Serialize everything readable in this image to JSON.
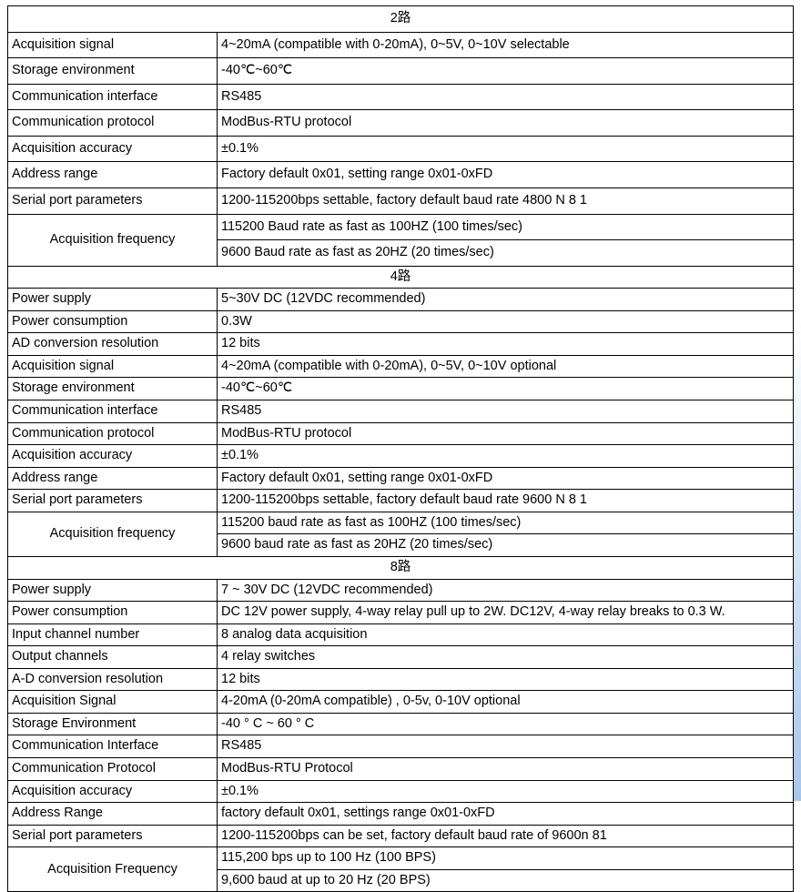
{
  "sections": [
    {
      "header": "2路",
      "tall": true,
      "rows": [
        {
          "label": "Acquisition signal",
          "value": "4~20mA (compatible with 0-20mA), 0~5V, 0~10V selectable"
        },
        {
          "label": "Storage environment",
          "value": "-40℃~60℃"
        },
        {
          "label": "Communication interface",
          "value": "RS485"
        },
        {
          "label": "Communication protocol",
          "value": "ModBus-RTU protocol"
        },
        {
          "label": "Acquisition accuracy",
          "value": "±0.1%"
        },
        {
          "label": "Address range",
          "value": "Factory default 0x01, setting range 0x01-0xFD"
        },
        {
          "label": "Serial port parameters",
          "value": "1200-115200bps settable, factory default baud rate 4800 N 8 1"
        },
        {
          "label": "Acquisition frequency",
          "merged": true,
          "values": [
            "115200 Baud rate as fast as 100HZ (100 times/sec)",
            "9600 Baud rate as fast as 20HZ (20 times/sec)"
          ]
        }
      ]
    },
    {
      "header": "4路",
      "tall": false,
      "rows": [
        {
          "label": "Power supply",
          "value": "5~30V DC (12VDC recommended)"
        },
        {
          "label": "Power consumption",
          "value": "0.3W"
        },
        {
          "label": "AD conversion resolution",
          "value": "12 bits"
        },
        {
          "label": "Acquisition signal",
          "value": "4~20mA (compatible with 0-20mA), 0~5V, 0~10V optional"
        },
        {
          "label": "Storage environment",
          "value": "-40℃~60℃"
        },
        {
          "label": "Communication interface",
          "value": "RS485"
        },
        {
          "label": "Communication protocol",
          "value": "ModBus-RTU protocol"
        },
        {
          "label": "Acquisition accuracy",
          "value": "±0.1%"
        },
        {
          "label": "Address range",
          "value": "Factory default 0x01, setting range 0x01-0xFD"
        },
        {
          "label": "Serial port parameters",
          "value": "1200-115200bps settable, factory default baud rate 9600 N 8 1"
        },
        {
          "label": "Acquisition frequency",
          "merged": true,
          "values": [
            "115200 baud rate as fast as 100HZ (100 times/sec)",
            "9600 baud rate as fast as 20HZ (20 times/sec)"
          ]
        }
      ]
    },
    {
      "header": "8路",
      "tall": false,
      "rows": [
        {
          "label": "Power supply",
          "value": "7 ~ 30V DC (12VDC recommended)"
        },
        {
          "label": "Power consumption",
          "value": "DC 12V power supply, 4-way relay pull up to 2W. DC12V, 4-way relay breaks to 0.3 W."
        },
        {
          "label": "Input channel number",
          "value": "8 analog data acquisition"
        },
        {
          "label": "Output channels",
          "value": "4 relay switches"
        },
        {
          "label": "A-D conversion resolution",
          "value": "12 bits"
        },
        {
          "label": "Acquisition Signal",
          "value": "4-20mA (0-20mA compatible) , 0-5v, 0-10V optional"
        },
        {
          "label": "Storage Environment",
          "value": "-40 ° C ~ 60 ° C"
        },
        {
          "label": "Communication Interface",
          "value": "RS485"
        },
        {
          "label": "Communication Protocol",
          "value": "ModBus-RTU Protocol"
        },
        {
          "label": "Acquisition accuracy",
          "value": "±0.1%"
        },
        {
          "label": "Address Range",
          "value": "factory default 0x01, settings range 0x01-0xFD"
        },
        {
          "label": "Serial port parameters",
          "value": "1200-115200bps can be set, factory default baud rate of 9600n 81"
        },
        {
          "label": "Acquisition Frequency",
          "merged": true,
          "values": [
            "115,200 bps up to 100 Hz (100 BPS)",
            "9,600 baud at up to 20 Hz (20 BPS)"
          ]
        }
      ]
    }
  ]
}
